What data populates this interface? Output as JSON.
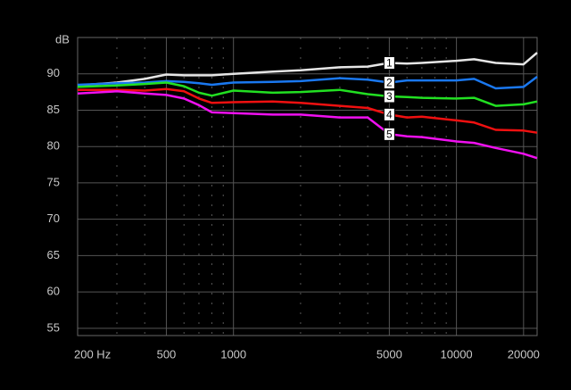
{
  "chart_data": {
    "type": "line",
    "y_label": "dB",
    "x_log": true,
    "grid": true,
    "xlim": [
      200,
      23000
    ],
    "ylim": [
      54,
      95
    ],
    "xticks": [
      {
        "value": 200,
        "label": "200 Hz"
      },
      500,
      1000,
      5000,
      10000,
      20000
    ],
    "x_minor": [
      300,
      400,
      600,
      700,
      800,
      900,
      2000,
      3000,
      4000,
      6000,
      7000,
      8000,
      9000
    ],
    "yticks": [
      55,
      60,
      65,
      70,
      75,
      80,
      85,
      90
    ],
    "x": [
      200,
      300,
      400,
      500,
      600,
      700,
      800,
      1000,
      1500,
      2000,
      3000,
      4000,
      5000,
      6000,
      7000,
      10000,
      12000,
      15000,
      20000,
      23000
    ],
    "series": [
      {
        "name": "1",
        "color": "#e6e6e6",
        "values": [
          88.4,
          88.8,
          89.3,
          89.9,
          89.8,
          89.8,
          89.8,
          90.0,
          90.3,
          90.5,
          90.9,
          91.0,
          91.5,
          91.4,
          91.5,
          91.8,
          92.0,
          91.5,
          91.3,
          92.9
        ]
      },
      {
        "name": "2",
        "color": "#1a78f0",
        "values": [
          88.5,
          88.7,
          88.8,
          89.0,
          88.9,
          88.7,
          88.5,
          88.8,
          88.9,
          89.0,
          89.4,
          89.2,
          88.8,
          89.1,
          89.1,
          89.1,
          89.3,
          88.0,
          88.2,
          89.6
        ]
      },
      {
        "name": "3",
        "color": "#22e022",
        "values": [
          88.2,
          88.4,
          88.6,
          88.8,
          88.3,
          87.4,
          87.0,
          87.7,
          87.4,
          87.5,
          87.8,
          87.2,
          86.9,
          86.8,
          86.7,
          86.6,
          86.7,
          85.6,
          85.8,
          86.2
        ]
      },
      {
        "name": "4",
        "color": "#f01010",
        "values": [
          87.8,
          87.8,
          87.7,
          87.9,
          87.6,
          86.6,
          86.0,
          86.1,
          86.2,
          86.0,
          85.6,
          85.3,
          84.4,
          84.0,
          84.1,
          83.6,
          83.3,
          82.3,
          82.2,
          81.9
        ]
      },
      {
        "name": "5",
        "color": "#f010f0",
        "values": [
          87.3,
          87.6,
          87.3,
          87.1,
          86.6,
          85.7,
          84.7,
          84.6,
          84.4,
          84.4,
          84.0,
          84.0,
          81.7,
          81.4,
          81.3,
          80.7,
          80.5,
          79.8,
          79.0,
          78.4
        ]
      }
    ]
  }
}
